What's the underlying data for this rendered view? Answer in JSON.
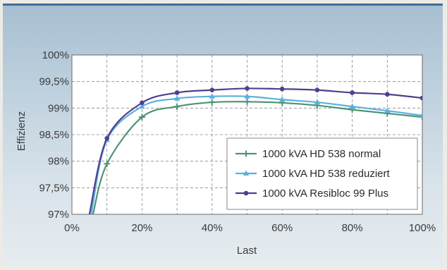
{
  "chart_data": {
    "type": "line",
    "title": "",
    "xlabel": "Last",
    "ylabel": "Effizienz",
    "xlim": [
      0,
      100
    ],
    "ylim": [
      97,
      100
    ],
    "x_ticks": [
      {
        "value": 0,
        "label": "0%"
      },
      {
        "value": 20,
        "label": "20%"
      },
      {
        "value": 40,
        "label": "40%"
      },
      {
        "value": 60,
        "label": "60%"
      },
      {
        "value": 80,
        "label": "80%"
      },
      {
        "value": 100,
        "label": "100%"
      }
    ],
    "y_ticks": [
      {
        "value": 97,
        "label": "97%"
      },
      {
        "value": 97.5,
        "label": "97,5%"
      },
      {
        "value": 98,
        "label": "98%"
      },
      {
        "value": 98.5,
        "label": "98,5%"
      },
      {
        "value": 99,
        "label": "99%"
      },
      {
        "value": 99.5,
        "label": "99,5%"
      },
      {
        "value": 100,
        "label": "100%"
      }
    ],
    "grid": true,
    "legend_position": "bottom-right",
    "series": [
      {
        "name": "1000 kVA HD 538 normal",
        "color": "#4e9474",
        "marker": "plus",
        "x": [
          6,
          10,
          20,
          30,
          40,
          50,
          60,
          70,
          80,
          90,
          100
        ],
        "y": [
          97,
          97.95,
          98.83,
          99.03,
          99.11,
          99.12,
          99.1,
          99.05,
          98.97,
          98.9,
          98.83
        ]
      },
      {
        "name": "1000 kVA HD 538 reduziert",
        "color": "#5ab0e0",
        "marker": "triangle",
        "x": [
          5.5,
          10,
          20,
          30,
          40,
          50,
          60,
          70,
          80,
          90,
          100
        ],
        "y": [
          97,
          98.4,
          99.03,
          99.18,
          99.22,
          99.22,
          99.16,
          99.11,
          99.03,
          98.95,
          98.86
        ]
      },
      {
        "name": "1000 kVA Resibloc 99 Plus",
        "color": "#4f3f8f",
        "marker": "circle",
        "x": [
          5,
          10,
          20,
          30,
          40,
          50,
          60,
          70,
          80,
          90,
          100
        ],
        "y": [
          97,
          98.43,
          99.1,
          99.29,
          99.34,
          99.37,
          99.36,
          99.34,
          99.29,
          99.26,
          99.19
        ]
      }
    ]
  }
}
